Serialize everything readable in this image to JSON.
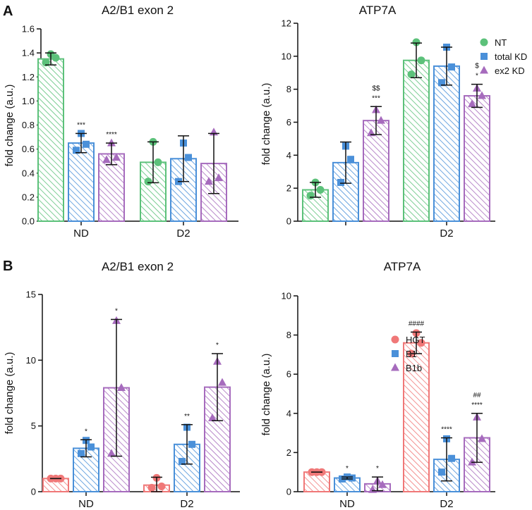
{
  "figure": {
    "panel_letters": [
      "A",
      "B"
    ]
  },
  "chart_data": [
    {
      "type": "bar",
      "panel": "A",
      "title": "A2/B1 exon 2",
      "ylabel": "fold change (a.u.)",
      "xlabel": "",
      "ylim": [
        0,
        1.6
      ],
      "yticks": [
        0.0,
        0.2,
        0.4,
        0.6,
        0.8,
        1.0,
        1.2,
        1.4,
        1.6
      ],
      "ytick_labels": [
        "0.0",
        "0.2",
        "0.4",
        "0.6",
        "0.8",
        "1.0",
        "1.2",
        "1.4",
        "1.6"
      ],
      "categories": [
        "ND",
        "D2"
      ],
      "legend": null,
      "series": [
        {
          "name": "NT",
          "color": "#5cc17a",
          "marker": "circle",
          "values": [
            1.35,
            0.49
          ],
          "errors": [
            0.05,
            0.17
          ],
          "points": [
            [
              1.32,
              1.36,
              1.39
            ],
            [
              0.33,
              0.49,
              0.66
            ]
          ],
          "sig": [
            "",
            ""
          ]
        },
        {
          "name": "total KD",
          "color": "#4a90d9",
          "marker": "square",
          "values": [
            0.65,
            0.52
          ],
          "errors": [
            0.08,
            0.19
          ],
          "points": [
            [
              0.59,
              0.64,
              0.73
            ],
            [
              0.33,
              0.53,
              0.65
            ]
          ],
          "sig": [
            "***",
            ""
          ]
        },
        {
          "name": "ex2 KD",
          "color": "#a66bbd",
          "marker": "triangle",
          "values": [
            0.56,
            0.48
          ],
          "errors": [
            0.09,
            0.25
          ],
          "points": [
            [
              0.51,
              0.53,
              0.65
            ],
            [
              0.33,
              0.36,
              0.74
            ]
          ],
          "sig": [
            "****",
            ""
          ]
        }
      ]
    },
    {
      "type": "bar",
      "panel": "A",
      "title": "ATP7A",
      "ylabel": "fold change (a.u.)",
      "xlabel": "",
      "ylim": [
        0,
        12
      ],
      "yticks": [
        0,
        2,
        4,
        6,
        8,
        10,
        12
      ],
      "ytick_labels": [
        "0",
        "2",
        "4",
        "6",
        "8",
        "10",
        "12"
      ],
      "categories": [
        "",
        "D2"
      ],
      "legend": {
        "position": "top-right",
        "entries": [
          "NT",
          "total KD",
          "ex2 KD"
        ]
      },
      "series": [
        {
          "name": "NT",
          "color": "#5cc17a",
          "marker": "circle",
          "values": [
            1.9,
            9.75
          ],
          "errors": [
            0.45,
            1.05
          ],
          "points": [
            [
              1.55,
              1.9,
              2.35
            ],
            [
              8.9,
              9.75,
              10.85
            ]
          ],
          "sig": [
            "",
            ""
          ]
        },
        {
          "name": "total KD",
          "color": "#4a90d9",
          "marker": "square",
          "values": [
            3.55,
            9.4
          ],
          "errors": [
            1.25,
            1.15
          ],
          "points": [
            [
              2.35,
              3.75,
              4.55
            ],
            [
              8.4,
              9.35,
              10.55
            ]
          ],
          "sig": [
            "",
            ""
          ]
        },
        {
          "name": "ex2 KD",
          "color": "#a66bbd",
          "marker": "triangle",
          "values": [
            6.1,
            7.6
          ],
          "errors": [
            0.85,
            0.7
          ],
          "points": [
            [
              5.35,
              6.1,
              6.75
            ],
            [
              7.1,
              7.6,
              8.05
            ]
          ],
          "sig": [
            "***",
            "*"
          ],
          "sig2": [
            "$$",
            "$"
          ]
        }
      ]
    },
    {
      "type": "bar",
      "panel": "B",
      "title": "A2/B1 exon 2",
      "ylabel": "fold change (a.u.)",
      "xlabel": "",
      "ylim": [
        0,
        15
      ],
      "yticks": [
        0,
        5,
        10,
        15
      ],
      "ytick_labels": [
        "0",
        "5",
        "10",
        "15"
      ],
      "categories": [
        "ND",
        "D2"
      ],
      "legend": null,
      "series": [
        {
          "name": "HGT",
          "color": "#f07878",
          "marker": "circle",
          "values": [
            1.0,
            0.5
          ],
          "errors": [
            0.0,
            0.6
          ],
          "points": [
            [
              1.0,
              1.0,
              1.0
            ],
            [
              0.3,
              0.4,
              1.05
            ]
          ],
          "sig": [
            "",
            ""
          ]
        },
        {
          "name": "B1",
          "color": "#4a90d9",
          "marker": "square",
          "values": [
            3.3,
            3.6
          ],
          "errors": [
            0.65,
            1.5
          ],
          "points": [
            [
              2.9,
              3.4,
              3.9
            ],
            [
              2.3,
              3.6,
              4.9
            ]
          ],
          "sig": [
            "*",
            "**"
          ]
        },
        {
          "name": "B1b",
          "color": "#a66bbd",
          "marker": "triangle",
          "values": [
            7.9,
            7.95
          ],
          "errors": [
            5.2,
            2.55
          ],
          "points": [
            [
              2.9,
              7.9,
              13.0
            ],
            [
              5.6,
              8.3,
              9.9
            ]
          ],
          "sig": [
            "*",
            "*"
          ]
        }
      ]
    },
    {
      "type": "bar",
      "panel": "B",
      "title": "ATP7A",
      "ylabel": "fold change (a.u.)",
      "xlabel": "",
      "ylim": [
        0,
        10
      ],
      "yticks": [
        0,
        2,
        4,
        6,
        8,
        10
      ],
      "ytick_labels": [
        "0",
        "2",
        "4",
        "6",
        "8",
        "10"
      ],
      "categories": [
        "ND",
        "D2"
      ],
      "legend": {
        "position": "top-right",
        "entries": [
          "HGT",
          "B1",
          "B1b"
        ]
      },
      "series": [
        {
          "name": "HGT",
          "color": "#f07878",
          "marker": "circle",
          "values": [
            1.0,
            7.6
          ],
          "errors": [
            0.0,
            0.55
          ],
          "points": [
            [
              1.0,
              1.0,
              1.0
            ],
            [
              7.05,
              7.6,
              8.1
            ]
          ],
          "sig": [
            "",
            ""
          ],
          "sig2": [
            "",
            "####"
          ]
        },
        {
          "name": "B1",
          "color": "#4a90d9",
          "marker": "square",
          "values": [
            0.7,
            1.65
          ],
          "errors": [
            0.05,
            1.1
          ],
          "points": [
            [
              0.65,
              0.7,
              0.75
            ],
            [
              1.0,
              1.7,
              2.7
            ]
          ],
          "sig": [
            "*",
            "****"
          ]
        },
        {
          "name": "B1b",
          "color": "#a66bbd",
          "marker": "triangle",
          "values": [
            0.4,
            2.75
          ],
          "errors": [
            0.35,
            1.25
          ],
          "points": [
            [
              0.1,
              0.35,
              0.55
            ],
            [
              1.5,
              2.7,
              3.8
            ]
          ],
          "sig": [
            "*",
            "****"
          ],
          "sig2": [
            "",
            "##"
          ]
        }
      ]
    }
  ]
}
